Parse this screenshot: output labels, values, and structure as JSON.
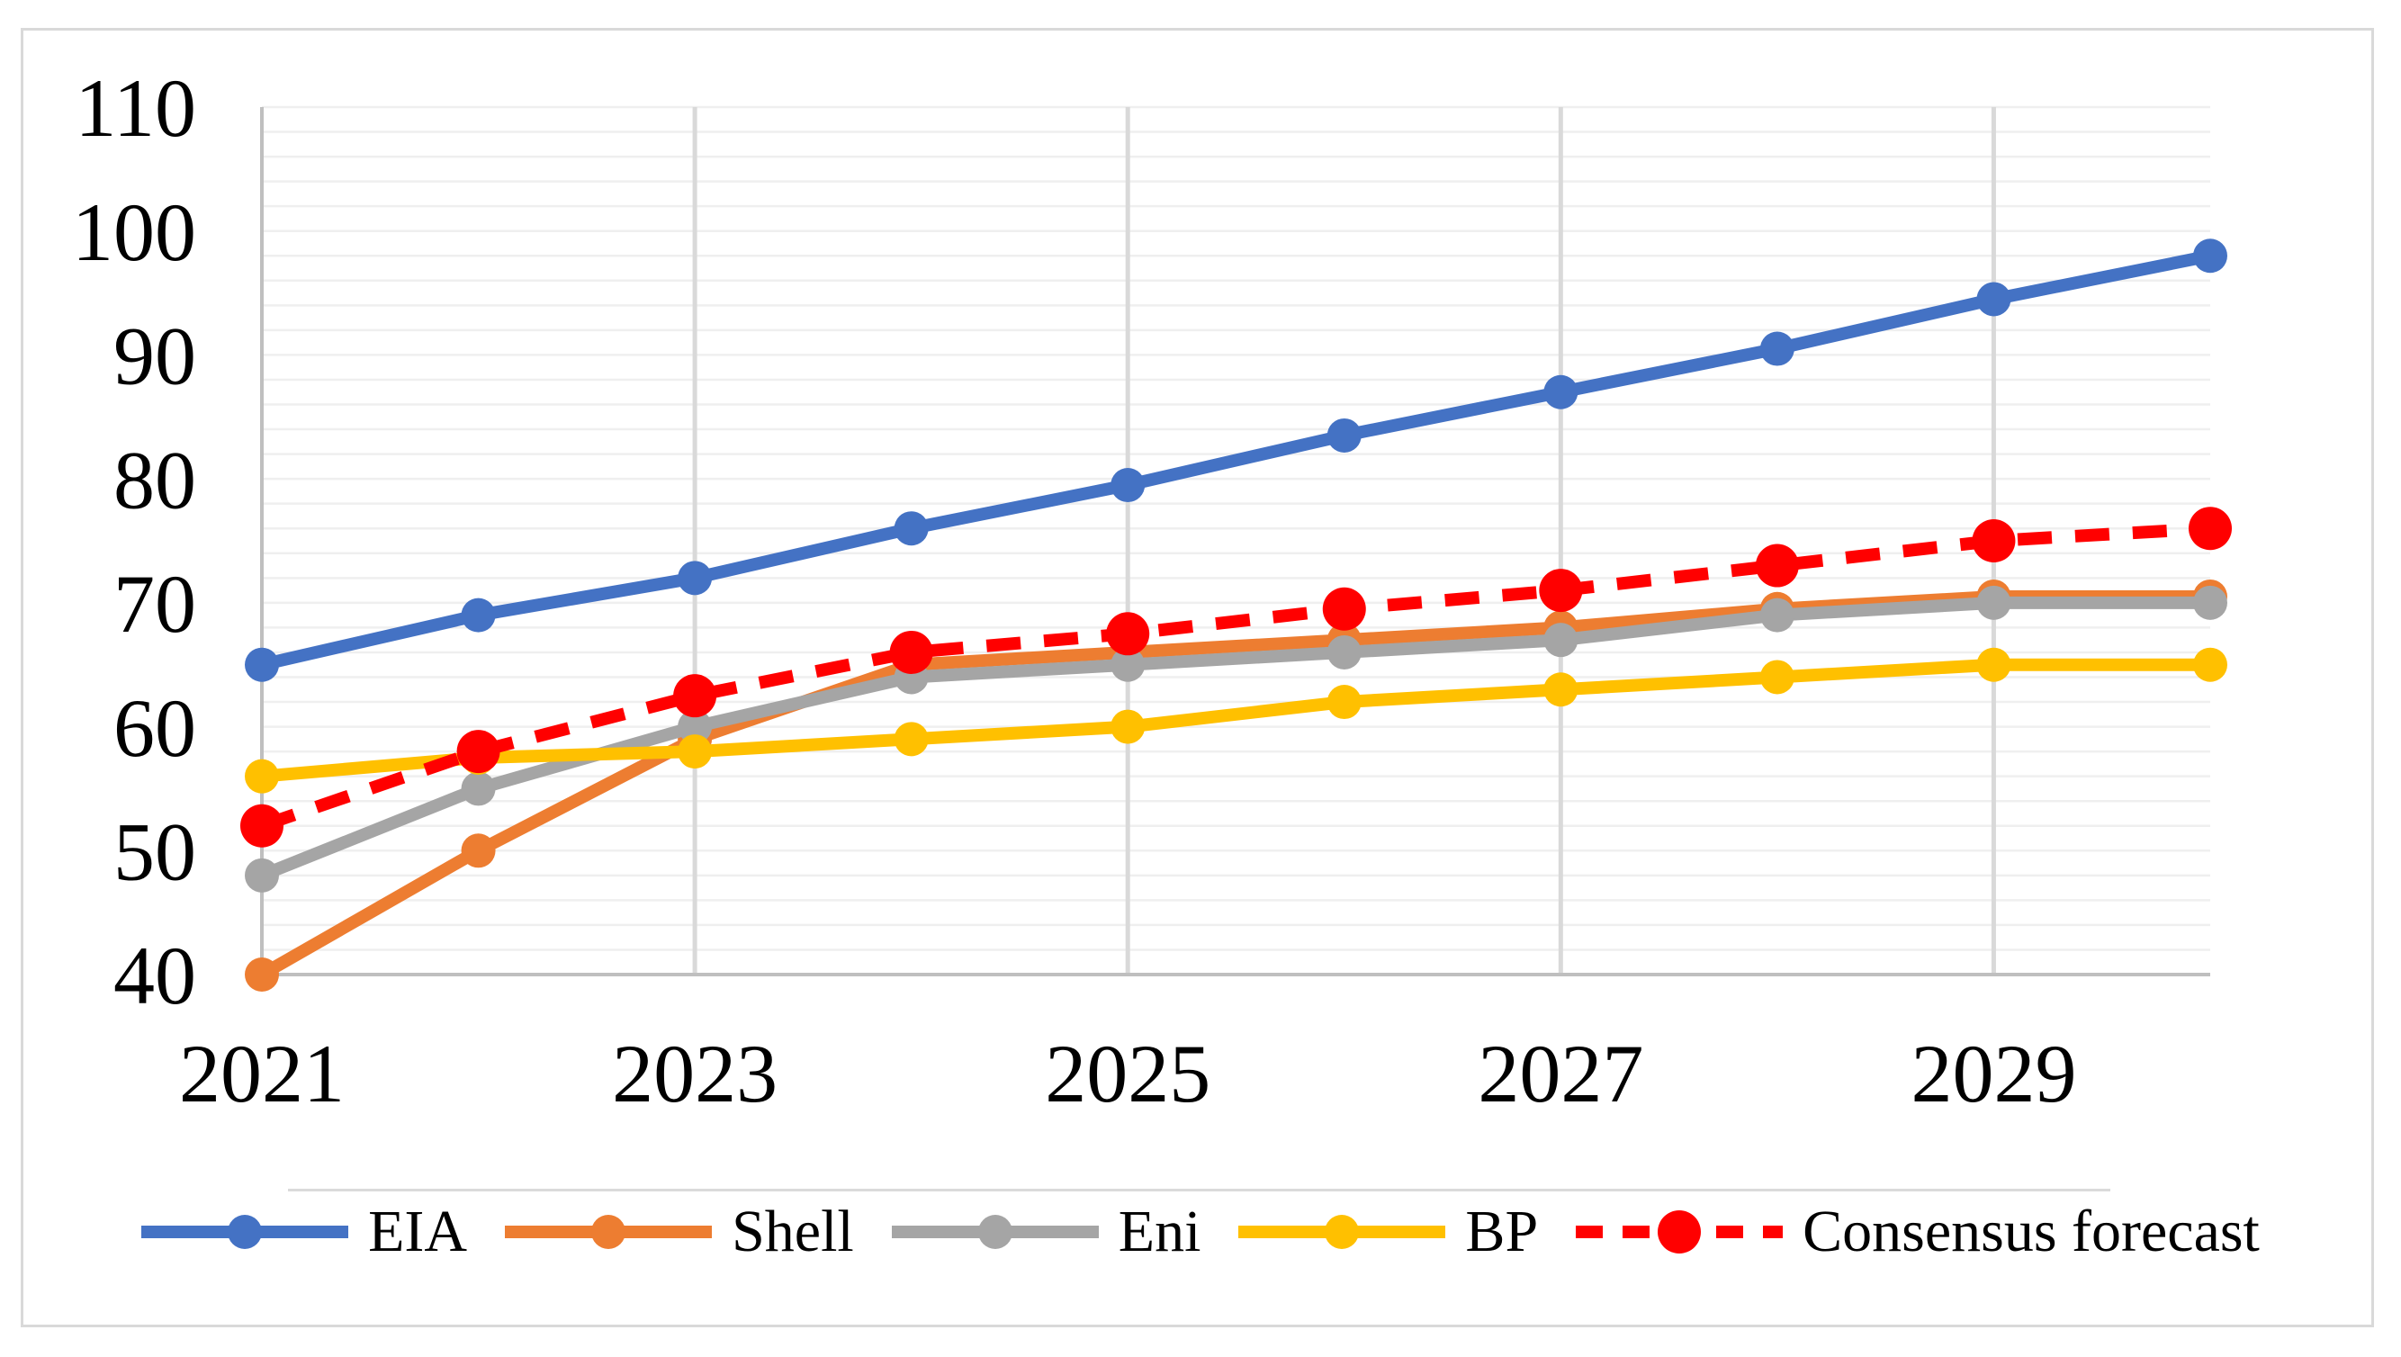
{
  "chart_data": {
    "type": "line",
    "title": "",
    "xlabel": "",
    "ylabel": "",
    "x": [
      2021,
      2022,
      2023,
      2024,
      2025,
      2026,
      2027,
      2028,
      2029,
      2030
    ],
    "x_tick_labels": [
      "2021",
      "2023",
      "2025",
      "2027",
      "2029"
    ],
    "x_tick_years": [
      2021,
      2023,
      2025,
      2027,
      2029
    ],
    "y_tick_labels": [
      "40",
      "50",
      "60",
      "70",
      "80",
      "90",
      "100",
      "110"
    ],
    "y_tick_values": [
      40,
      50,
      60,
      70,
      80,
      90,
      100,
      110
    ],
    "ylim": [
      40,
      110
    ],
    "grid": {
      "horizontal_minor_step": 2,
      "vertical_gridline_years": [
        2023,
        2025,
        2027,
        2029
      ],
      "minor_line_color": "#efefef",
      "vertical_line_color": "#d9d9d9",
      "axis_line_color": "#bfbfbf"
    },
    "legend_position": "bottom",
    "series": [
      {
        "name": "EIA",
        "color": "#4472C4",
        "dashed": false,
        "marker_radius": 19,
        "values": [
          65,
          69,
          72,
          76,
          79.5,
          83.5,
          87,
          90.5,
          94.5,
          98
        ]
      },
      {
        "name": "Shell",
        "color": "#ED7D31",
        "dashed": false,
        "marker_radius": 19,
        "values": [
          40,
          50,
          59,
          65,
          66,
          67,
          68,
          69.5,
          70.5,
          70.5
        ]
      },
      {
        "name": "Eni",
        "color": "#A5A5A5",
        "dashed": false,
        "marker_radius": 19,
        "values": [
          48,
          55,
          60,
          64,
          65,
          66,
          67,
          69,
          70,
          70
        ]
      },
      {
        "name": "BP",
        "color": "#FFC000",
        "dashed": false,
        "marker_radius": 19,
        "values": [
          56,
          57.5,
          58,
          59,
          60,
          62,
          63,
          64,
          65,
          65
        ]
      },
      {
        "name": "Consensus forecast",
        "color": "#FF0000",
        "dashed": true,
        "marker_radius": 24,
        "values": [
          52,
          58,
          62.5,
          66,
          67.5,
          69.5,
          71,
          73,
          75,
          76
        ]
      }
    ],
    "frame_border_color": "#d9d9d9"
  }
}
